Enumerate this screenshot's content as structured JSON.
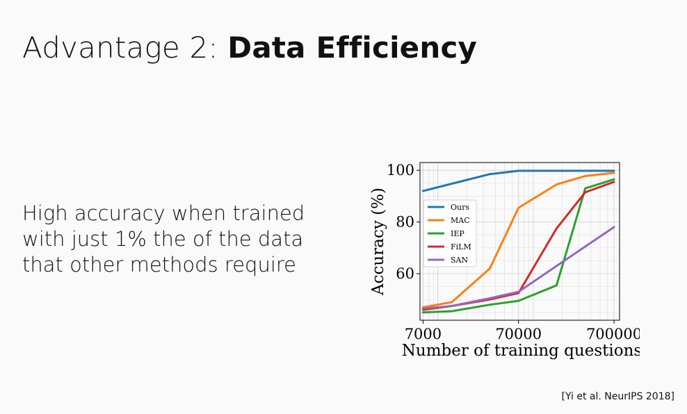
{
  "slide": {
    "title_prefix": "Advantage 2: ",
    "title_bold": "Data Efficiency",
    "body": "High accuracy when trained with just 1% the of the data that other methods require",
    "citation": "[Yi et al. NeurIPS 2018]"
  },
  "chart_data": {
    "type": "line",
    "xlabel": "Number of training questions",
    "ylabel": "Accuracy (%)",
    "xscale": "log",
    "xlim": [
      6500,
      800000
    ],
    "ylim": [
      42,
      103
    ],
    "xticks": [
      7000,
      70000,
      700000
    ],
    "xtick_labels": [
      "7000",
      "70000",
      "700000"
    ],
    "yticks": [
      60,
      80,
      100
    ],
    "ytick_labels": [
      "60",
      "80",
      "100"
    ],
    "grid": true,
    "legend_position": "center-left",
    "series": [
      {
        "name": "Ours",
        "color": "#1f77b4",
        "x": [
          7000,
          35000,
          70000,
          700000
        ],
        "y": [
          92,
          98.5,
          99.8,
          99.8
        ]
      },
      {
        "name": "MAC",
        "color": "#ff7f0e",
        "x": [
          7000,
          14000,
          35000,
          70000,
          175000,
          350000,
          700000
        ],
        "y": [
          47,
          49,
          62,
          85.5,
          94.5,
          97.8,
          99
        ]
      },
      {
        "name": "IEP",
        "color": "#2ca02c",
        "x": [
          7000,
          14000,
          35000,
          70000,
          175000,
          350000,
          700000
        ],
        "y": [
          45,
          45.5,
          48,
          49.5,
          55.5,
          93,
          96.5
        ]
      },
      {
        "name": "FiLM",
        "color": "#d62728",
        "x": [
          7000,
          14000,
          35000,
          70000,
          175000,
          350000,
          700000
        ],
        "y": [
          46,
          47.5,
          50,
          52.5,
          77.5,
          91.5,
          95.5
        ]
      },
      {
        "name": "SAN",
        "color": "#9467bd",
        "x": [
          7000,
          14000,
          35000,
          70000,
          175000,
          350000,
          700000
        ],
        "y": [
          46.5,
          47.5,
          50.5,
          53,
          63,
          70.5,
          78
        ]
      }
    ]
  }
}
